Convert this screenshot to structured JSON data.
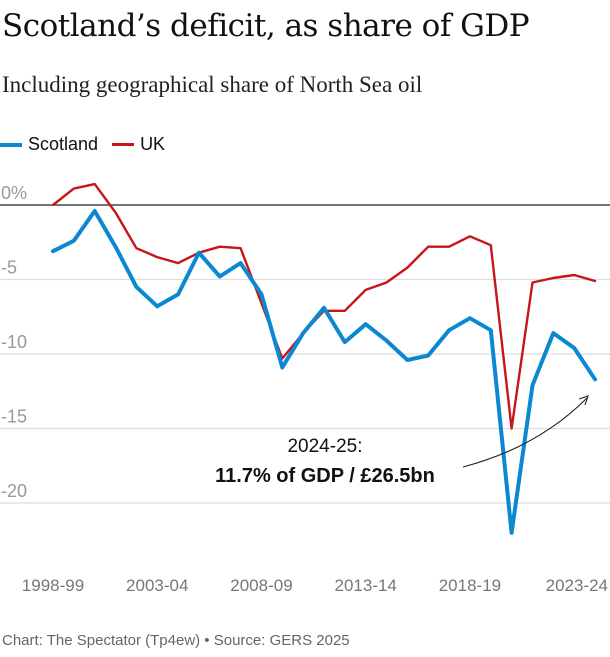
{
  "title": "Scotland’s deficit, as share of GDP",
  "subtitle": "Including geographical share of North Sea oil",
  "footer": "Chart: The Spectator (Tp4ew) • Source: GERS 2025",
  "colors": {
    "Scotland": "#0b88d1",
    "UK": "#c8141b"
  },
  "chart_data": {
    "type": "line",
    "title": "Scotland’s deficit, as share of GDP",
    "subtitle": "Including geographical share of North Sea oil",
    "x": [
      "1998-99",
      "1999-00",
      "2000-01",
      "2001-02",
      "2002-03",
      "2003-04",
      "2004-05",
      "2005-06",
      "2006-07",
      "2007-08",
      "2008-09",
      "2009-10",
      "2010-11",
      "2011-12",
      "2012-13",
      "2013-14",
      "2014-15",
      "2015-16",
      "2016-17",
      "2017-18",
      "2018-19",
      "2019-20",
      "2020-21",
      "2021-22",
      "2022-23",
      "2023-24",
      "2024-25"
    ],
    "x_tick_labels": [
      "1998-99",
      "2003-04",
      "2008-09",
      "2013-14",
      "2018-19",
      "2023-24"
    ],
    "y_tick_labels": [
      "0%",
      "-5",
      "-10",
      "-15",
      "-20"
    ],
    "y_ticks": [
      0,
      -5,
      -10,
      -15,
      -20
    ],
    "ylim": [
      -23,
      2
    ],
    "grid": true,
    "legend": "top-left",
    "series": [
      {
        "name": "Scotland",
        "values": [
          -3.1,
          -2.4,
          -0.4,
          -2.8,
          -5.5,
          -6.8,
          -6.0,
          -3.2,
          -4.8,
          -3.9,
          -6.0,
          -10.9,
          -8.6,
          -6.9,
          -9.2,
          -8.0,
          -9.1,
          -10.4,
          -10.1,
          -8.4,
          -7.6,
          -8.4,
          -22.0,
          -12.1,
          -8.6,
          -9.6,
          -11.7
        ]
      },
      {
        "name": "UK",
        "values": [
          0.0,
          1.1,
          1.4,
          -0.5,
          -2.9,
          -3.5,
          -3.9,
          -3.2,
          -2.8,
          -2.9,
          -6.6,
          -10.3,
          -8.6,
          -7.1,
          -7.1,
          -5.7,
          -5.2,
          -4.2,
          -2.8,
          -2.8,
          -2.1,
          -2.7,
          -15.0,
          -5.2,
          -4.9,
          -4.7,
          -5.1
        ]
      }
    ],
    "annotation": {
      "line1": "2024-25:",
      "line2": "11.7% of GDP / £26.5bn",
      "target": "2024-25"
    }
  }
}
